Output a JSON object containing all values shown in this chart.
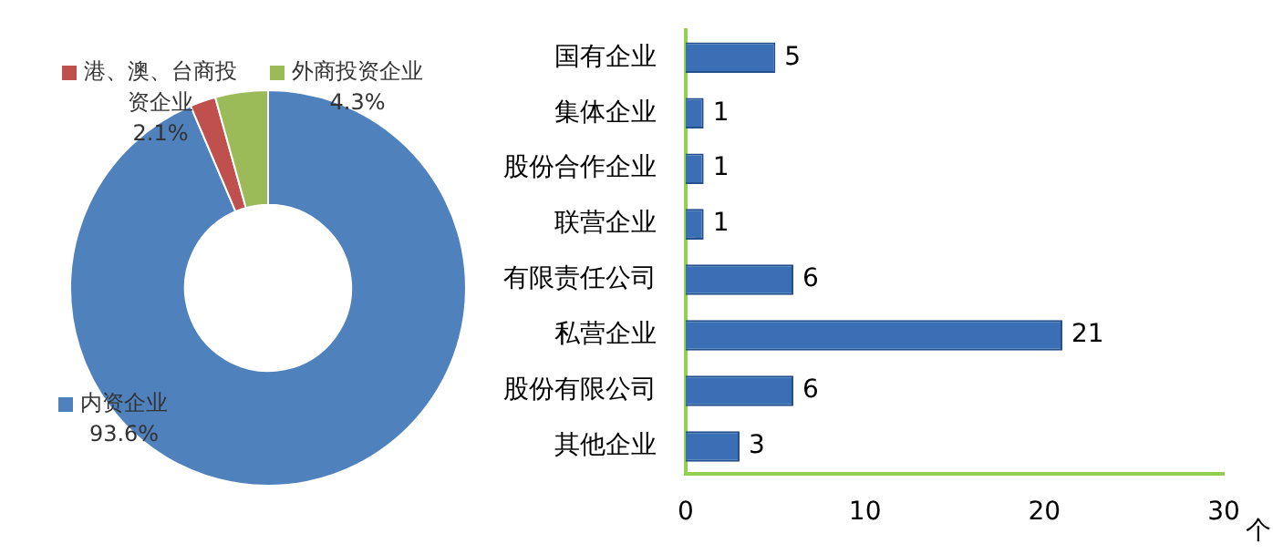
{
  "chart_data": [
    {
      "type": "donut",
      "categories": [
        "内资企业",
        "港、澳、台商投资企业",
        "外商投资企业"
      ],
      "values": [
        93.6,
        2.1,
        4.3
      ],
      "colors": [
        "#4f81bd",
        "#c0504d",
        "#9bbb59"
      ],
      "value_labels": [
        "93.6%",
        "2.1%",
        "4.3%"
      ],
      "legend": "left"
    },
    {
      "type": "bar",
      "orientation": "horizontal",
      "categories": [
        "国有企业",
        "集体企业",
        "股份合作企业",
        "联营企业",
        "有限责任公司",
        "私营企业",
        "股份有限公司",
        "其他企业"
      ],
      "values": [
        5,
        1,
        1,
        1,
        6,
        21,
        6,
        3
      ],
      "color": "#3a6fb5",
      "xlabel": "个",
      "xlim": [
        0,
        30
      ],
      "xticks": [
        0,
        10,
        20,
        30
      ],
      "grid": false,
      "data_labels": true,
      "legend": false
    }
  ]
}
